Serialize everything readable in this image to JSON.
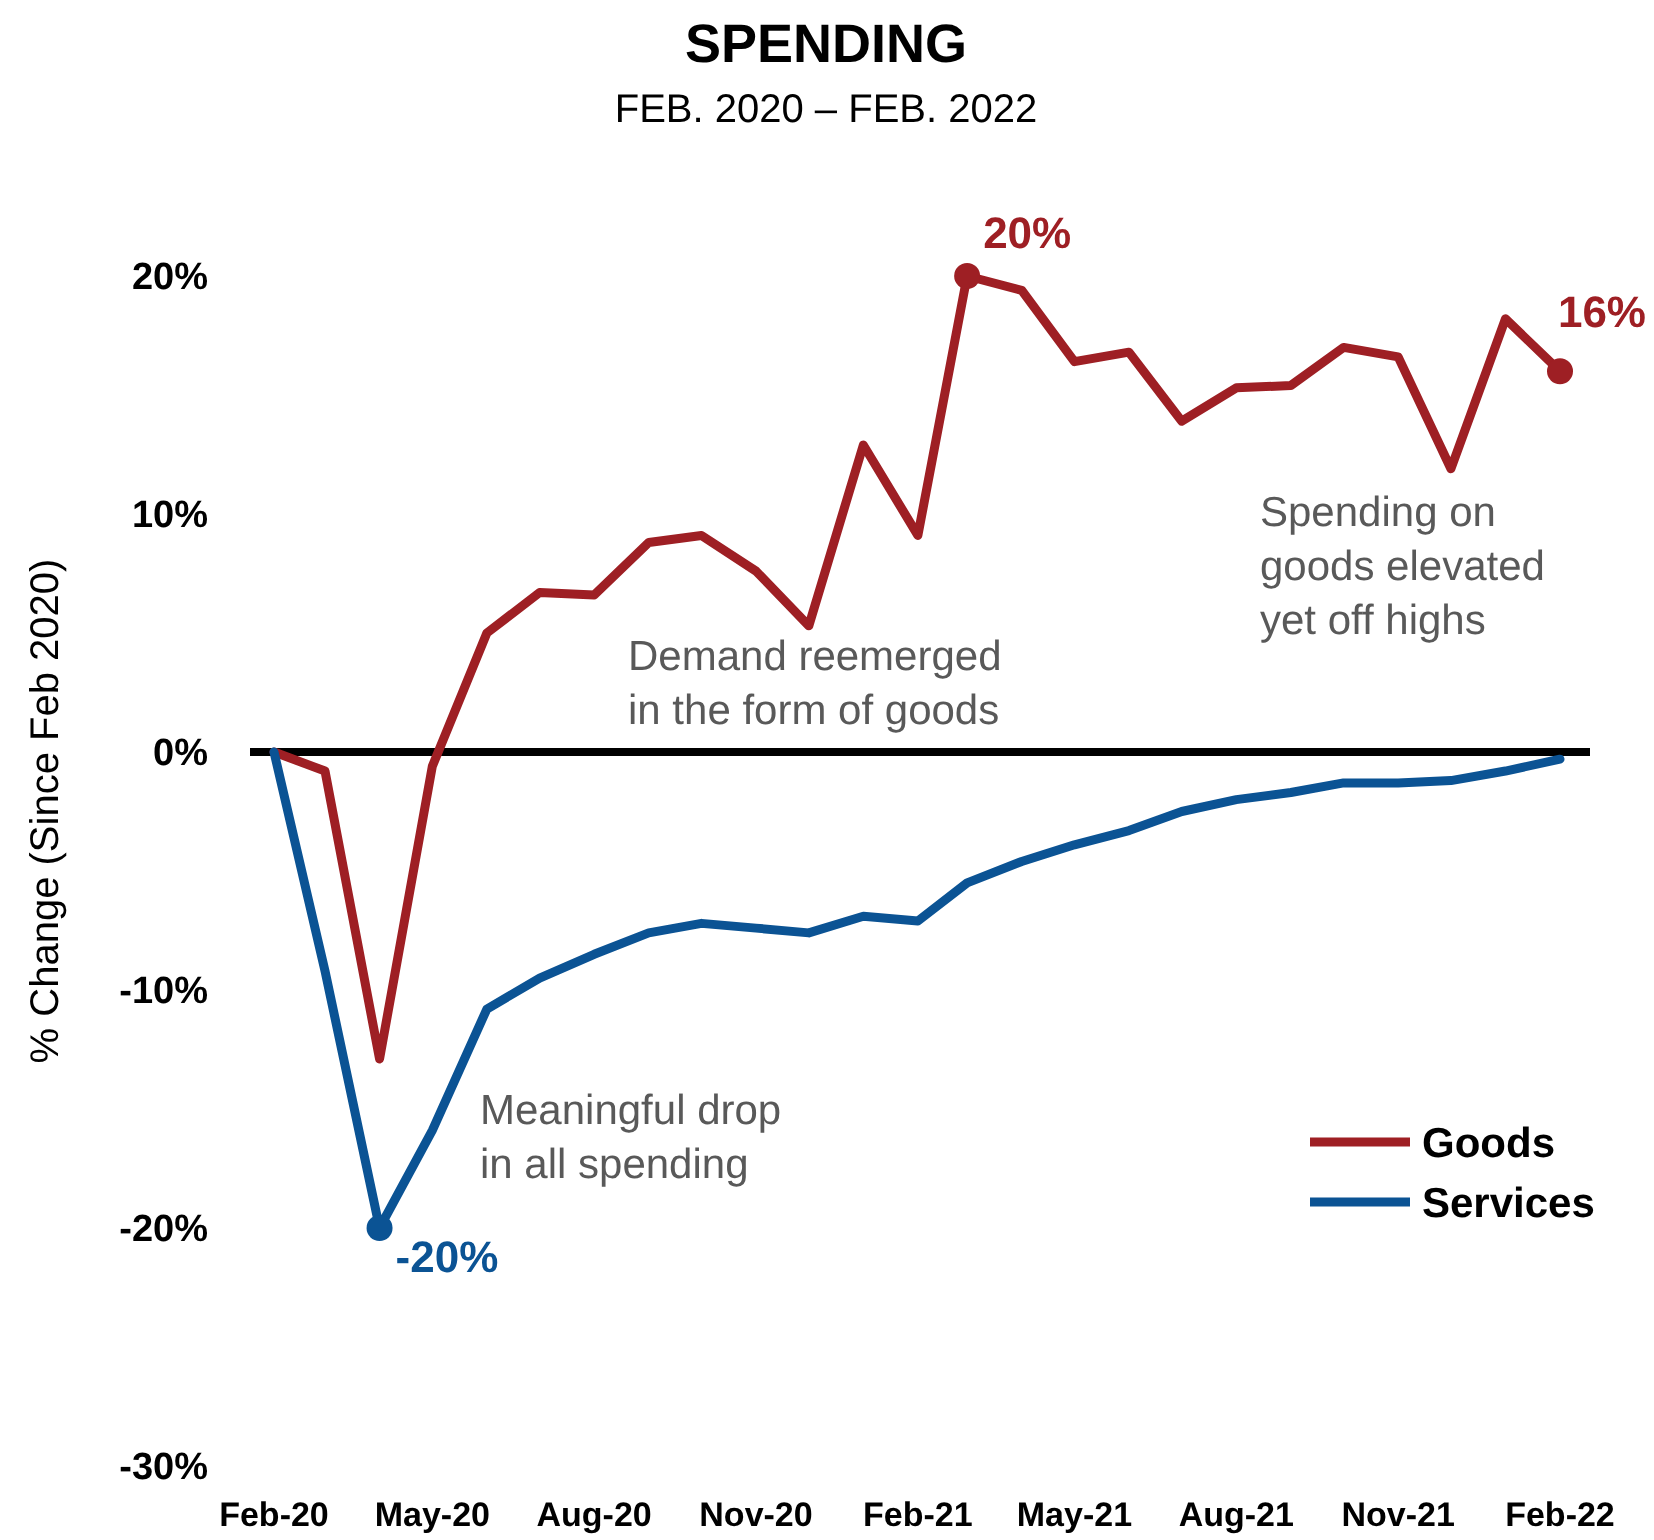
{
  "chart_data": {
    "type": "line",
    "title": "SPENDING",
    "subtitle": "FEB. 2020 – FEB. 2022",
    "ylabel": "% Change (Since Feb 2020)",
    "x": [
      "2020-02",
      "2020-03",
      "2020-04",
      "2020-05",
      "2020-06",
      "2020-07",
      "2020-08",
      "2020-09",
      "2020-10",
      "2020-11",
      "2020-12",
      "2021-01",
      "2021-02",
      "2021-03",
      "2021-04",
      "2021-05",
      "2021-06",
      "2021-07",
      "2021-08",
      "2021-09",
      "2021-10",
      "2021-11",
      "2021-12",
      "2022-01",
      "2022-02"
    ],
    "series": [
      {
        "name": "Goods",
        "color": "#9e1f24",
        "values": [
          0,
          -0.8,
          -12.9,
          -0.6,
          5.0,
          6.7,
          6.6,
          8.8,
          9.1,
          7.6,
          5.3,
          12.9,
          9.1,
          20,
          19.4,
          16.4,
          16.8,
          13.9,
          15.3,
          15.4,
          17.0,
          16.6,
          11.9,
          18.2,
          16
        ]
      },
      {
        "name": "Services",
        "color": "#0b5394",
        "values": [
          0,
          -9.2,
          -20,
          -15.9,
          -10.8,
          -9.5,
          -8.5,
          -7.6,
          -7.2,
          -7.4,
          -7.6,
          -6.9,
          -7.1,
          -5.5,
          -4.6,
          -3.9,
          -3.3,
          -2.5,
          -2.0,
          -1.7,
          -1.3,
          -1.3,
          -1.2,
          -0.8,
          -0.3
        ]
      }
    ],
    "xlim": [
      "2020-02",
      "2022-02"
    ],
    "xticks": [
      {
        "value": "2020-02",
        "label": "Feb-20"
      },
      {
        "value": "2020-05",
        "label": "May-20"
      },
      {
        "value": "2020-08",
        "label": "Aug-20"
      },
      {
        "value": "2020-11",
        "label": "Nov-20"
      },
      {
        "value": "2021-02",
        "label": "Feb-21"
      },
      {
        "value": "2021-05",
        "label": "May-21"
      },
      {
        "value": "2021-08",
        "label": "Aug-21"
      },
      {
        "value": "2021-11",
        "label": "Nov-21"
      },
      {
        "value": "2022-02",
        "label": "Feb-22"
      }
    ],
    "ylim": [
      -30,
      20
    ],
    "yticks": [
      {
        "value": -30,
        "label": "-30%"
      },
      {
        "value": -20,
        "label": "-20%"
      },
      {
        "value": -10,
        "label": "-10%"
      },
      {
        "value": 0,
        "label": "0%"
      },
      {
        "value": 10,
        "label": "10%"
      },
      {
        "value": 20,
        "label": "20%"
      }
    ],
    "ref_lines": [
      {
        "axis": "y",
        "value": 0,
        "color": "#000000"
      }
    ],
    "annotations": [
      {
        "text": "20%",
        "x": "2021-03",
        "y": 20
      },
      {
        "text": "-20%",
        "x": "2020-04",
        "y": -20
      },
      {
        "text": "16%",
        "x": "2022-02",
        "y": 16
      },
      "Demand reemerged\nin the form of goods",
      "Meaningful drop\nin all spending",
      "Spending on\ngoods elevated\nyet off highs"
    ],
    "legend": "bottom right",
    "grid": false,
    "marker": "none",
    "line_style": "solid"
  }
}
